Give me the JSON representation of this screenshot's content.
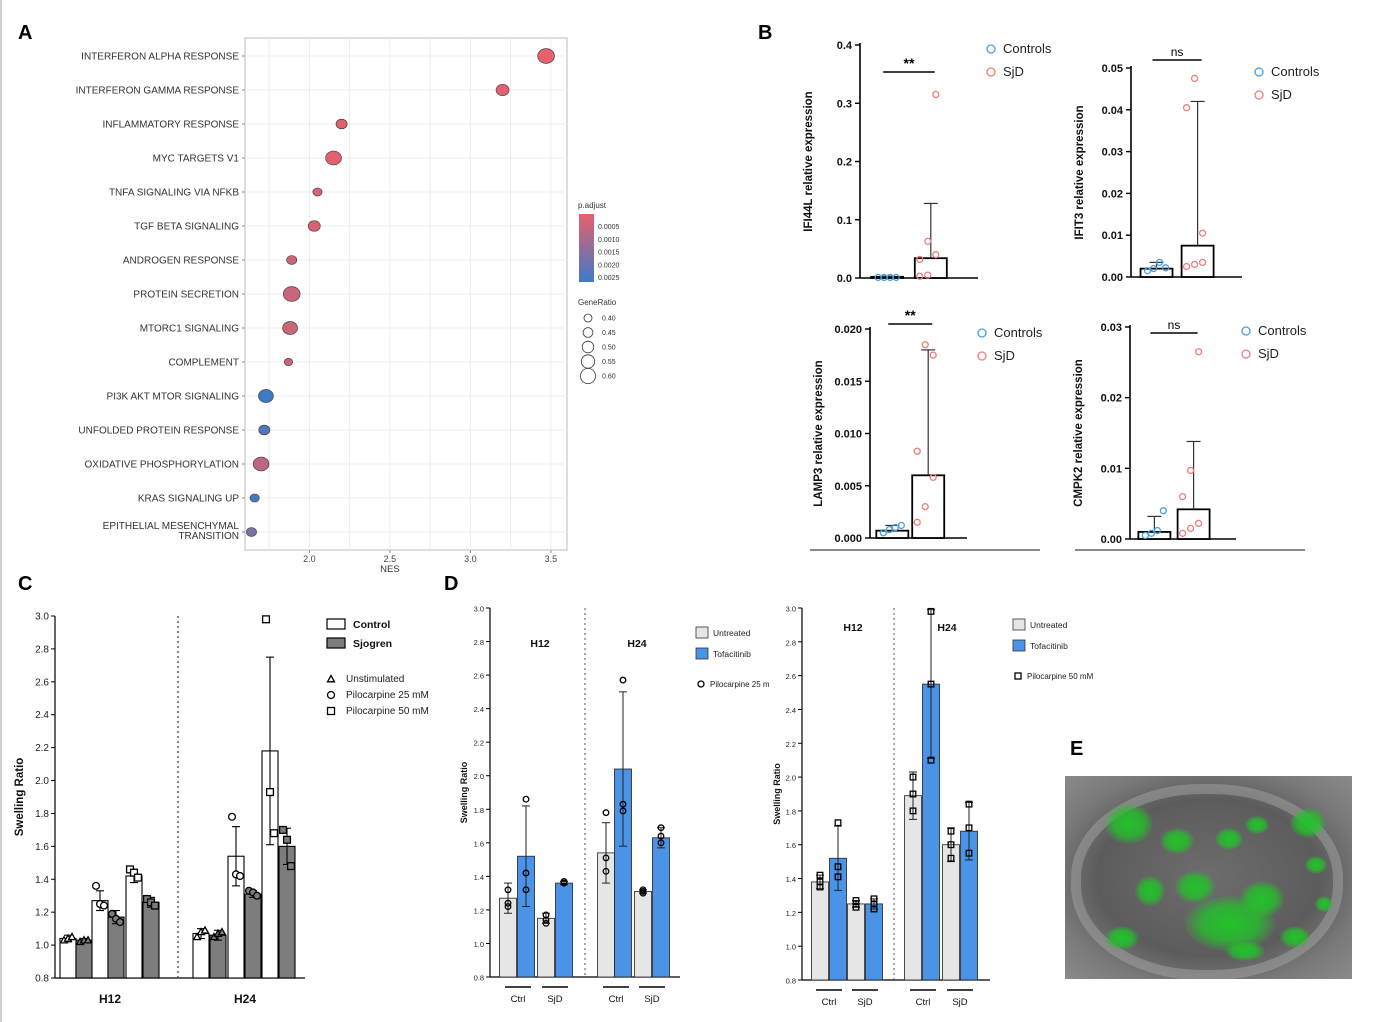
{
  "panels": {
    "A": "A",
    "B": "B",
    "C": "C",
    "D": "D",
    "E": "E"
  },
  "chart_data": [
    {
      "id": "A",
      "type": "scatter",
      "xlabel": "NES",
      "xticks": [
        2.0,
        2.5,
        3.0,
        3.5
      ],
      "xtick_labels": [
        "2.0",
        "2.5",
        "3.0",
        "3.5"
      ],
      "xlim": [
        1.6,
        3.6
      ],
      "grid": true,
      "categories": [
        "INTERFERON ALPHA RESPONSE",
        "INTERFERON GAMMA RESPONSE",
        "INFLAMMATORY RESPONSE",
        "MYC TARGETS V1",
        "TNFA SIGNALING VIA NFKB",
        "TGF BETA SIGNALING",
        "ANDROGEN RESPONSE",
        "PROTEIN SECRETION",
        "MTORC1 SIGNALING",
        "COMPLEMENT",
        "PI3K AKT MTOR SIGNALING",
        "UNFOLDED PROTEIN RESPONSE",
        "OXIDATIVE PHOSPHORYLATION",
        "KRAS SIGNALING UP",
        "EPITHELIAL MESENCHYMAL TRANSITION"
      ],
      "nes": [
        3.47,
        3.2,
        2.2,
        2.15,
        2.05,
        2.03,
        1.89,
        1.89,
        1.88,
        1.87,
        1.73,
        1.72,
        1.7,
        1.66,
        1.64
      ],
      "gene_ratio": [
        0.6,
        0.52,
        0.48,
        0.58,
        0.44,
        0.5,
        0.46,
        0.6,
        0.56,
        0.42,
        0.56,
        0.48,
        0.58,
        0.44,
        0.46
      ],
      "p_adjust": [
        0.0002,
        0.0003,
        0.0003,
        0.0003,
        0.0004,
        0.0004,
        0.0006,
        0.0006,
        0.0006,
        0.0006,
        0.0025,
        0.0022,
        0.0008,
        0.0024,
        0.0016
      ],
      "legend_color": {
        "title": "p.adjust",
        "labels": [
          "0.0005",
          "0.0010",
          "0.0015",
          "0.0020",
          "0.0025"
        ],
        "low_color": "#e8606a",
        "high_color": "#3d7ac8"
      },
      "legend_size": {
        "title": "GeneRatio",
        "labels": [
          "0.40",
          "0.45",
          "0.50",
          "0.55",
          "0.60"
        ]
      }
    },
    {
      "id": "B1",
      "type": "bar",
      "ylabel": "IFI44L relative expression",
      "ylim": [
        0,
        0.4
      ],
      "yticks": [
        "0.0",
        "0.1",
        "0.2",
        "0.3",
        "0.4"
      ],
      "groups": [
        "Controls",
        "SjD"
      ],
      "means": [
        0.002,
        0.034
      ],
      "sd_upper": [
        0.003,
        0.128
      ],
      "points": [
        [
          0.001,
          0.001,
          0.001,
          0.001
        ],
        [
          0.003,
          0.005,
          0.04,
          0.032,
          0.063,
          0.315
        ]
      ],
      "significance": "**",
      "legend": [
        "Controls",
        "SjD"
      ]
    },
    {
      "id": "B2",
      "type": "bar",
      "ylabel": "IFIT3 relative expression",
      "ylim": [
        0,
        0.05
      ],
      "yticks": [
        "0.00",
        "0.01",
        "0.02",
        "0.03",
        "0.04",
        "0.05"
      ],
      "groups": [
        "Controls",
        "SjD"
      ],
      "means": [
        0.002,
        0.0075
      ],
      "sd_upper": [
        0.0035,
        0.042
      ],
      "points": [
        [
          0.0015,
          0.002,
          0.0035,
          0.0022
        ],
        [
          0.0025,
          0.003,
          0.0105,
          0.0405,
          0.0475,
          0.0035
        ]
      ],
      "significance": "ns",
      "legend": [
        "Controls",
        "SjD"
      ]
    },
    {
      "id": "B3",
      "type": "bar",
      "ylabel": "LAMP3 relative expression",
      "ylim": [
        0,
        0.02
      ],
      "yticks": [
        "0.000",
        "0.005",
        "0.010",
        "0.015",
        "0.020"
      ],
      "groups": [
        "Controls",
        "SjD"
      ],
      "means": [
        0.0007,
        0.006
      ],
      "sd_upper": [
        0.0012,
        0.018
      ],
      "points": [
        [
          0.0005,
          0.0008,
          0.001,
          0.0012
        ],
        [
          0.0015,
          0.003,
          0.0058,
          0.0083,
          0.0185,
          0.0175
        ]
      ],
      "significance": "**",
      "legend": [
        "Controls",
        "SjD"
      ]
    },
    {
      "id": "B4",
      "type": "bar",
      "ylabel": "CMPK2 relative expression",
      "ylim": [
        0,
        0.03
      ],
      "yticks": [
        "0.00",
        "0.01",
        "0.02",
        "0.03"
      ],
      "groups": [
        "Controls",
        "SjD"
      ],
      "means": [
        0.001,
        0.0042
      ],
      "sd_upper": [
        0.0032,
        0.0138
      ],
      "points": [
        [
          0.0005,
          0.0008,
          0.0012,
          0.004
        ],
        [
          0.0008,
          0.0015,
          0.0022,
          0.006,
          0.0097,
          0.0265
        ]
      ],
      "significance": "ns",
      "legend": [
        "Controls",
        "SjD"
      ]
    },
    {
      "id": "C",
      "type": "bar",
      "ylabel": "Swelling Ratio",
      "ylim": [
        0.8,
        3.0
      ],
      "yticks": [
        "0.8",
        "1.0",
        "1.2",
        "1.4",
        "1.6",
        "1.8",
        "2.0",
        "2.2",
        "2.4",
        "2.6",
        "2.8",
        "3.0"
      ],
      "groups": [
        "H12",
        "H24"
      ],
      "legend_fill": [
        "Control",
        "Sjogren"
      ],
      "legend_marker": [
        "Unstimulated",
        "Pilocarpine 25 mM",
        "Pilocarpine 50 mM"
      ],
      "bars": [
        {
          "group": 0,
          "fill": "Control",
          "marker": "triangle",
          "mean": 1.04,
          "sd": 0.02,
          "points": [
            1.03,
            1.04,
            1.05
          ]
        },
        {
          "group": 0,
          "fill": "Sjogren",
          "marker": "triangle",
          "mean": 1.03,
          "sd": 0.01,
          "points": [
            1.02,
            1.03,
            1.03
          ]
        },
        {
          "group": 0,
          "fill": "Control",
          "marker": "circle",
          "mean": 1.27,
          "sd": 0.06,
          "points": [
            1.36,
            1.25,
            1.24
          ]
        },
        {
          "group": 0,
          "fill": "Sjogren",
          "marker": "circle",
          "mean": 1.17,
          "sd": 0.04,
          "points": [
            1.19,
            1.16,
            1.14
          ]
        },
        {
          "group": 0,
          "fill": "Control",
          "marker": "square",
          "mean": 1.42,
          "sd": 0.04,
          "points": [
            1.46,
            1.44,
            1.41
          ]
        },
        {
          "group": 0,
          "fill": "Sjogren",
          "marker": "square",
          "mean": 1.26,
          "sd": 0.03,
          "points": [
            1.28,
            1.26,
            1.24
          ]
        },
        {
          "group": 1,
          "fill": "Control",
          "marker": "triangle",
          "mean": 1.07,
          "sd": 0.03,
          "points": [
            1.05,
            1.08,
            1.09
          ]
        },
        {
          "group": 1,
          "fill": "Sjogren",
          "marker": "triangle",
          "mean": 1.06,
          "sd": 0.03,
          "points": [
            1.05,
            1.07,
            1.08
          ]
        },
        {
          "group": 1,
          "fill": "Control",
          "marker": "circle",
          "mean": 1.54,
          "sd": 0.18,
          "points": [
            1.78,
            1.43,
            1.42
          ]
        },
        {
          "group": 1,
          "fill": "Sjogren",
          "marker": "circle",
          "mean": 1.31,
          "sd": 0.02,
          "points": [
            1.33,
            1.32,
            1.3
          ]
        },
        {
          "group": 1,
          "fill": "Control",
          "marker": "square",
          "mean": 2.18,
          "sd": 0.57,
          "points": [
            2.98,
            1.93,
            1.68
          ]
        },
        {
          "group": 1,
          "fill": "Sjogren",
          "marker": "square",
          "mean": 1.6,
          "sd": 0.11,
          "points": [
            1.7,
            1.64,
            1.48
          ]
        }
      ]
    },
    {
      "id": "D1",
      "type": "bar",
      "ylabel": "Swelling Ratio",
      "ylim": [
        0.8,
        3.0
      ],
      "yticks": [
        "0.8",
        "1.0",
        "1.2",
        "1.4",
        "1.6",
        "1.8",
        "2.0",
        "2.2",
        "2.4",
        "2.6",
        "2.8",
        "3.0"
      ],
      "timepoints": [
        "H12",
        "H24"
      ],
      "xgroups": [
        "Ctrl",
        "SjD",
        "Ctrl",
        "SjD"
      ],
      "legend": [
        "Untreated",
        "Tofacitinib"
      ],
      "marker_legend": "Pilocarpine 25 m",
      "bars": [
        {
          "treat": "Untreated",
          "mean": 1.27,
          "sd": 0.09,
          "points": [
            1.32,
            1.24,
            1.22
          ]
        },
        {
          "treat": "Tofacitinib",
          "mean": 1.52,
          "sd": 0.3,
          "points": [
            1.86,
            1.42,
            1.32
          ]
        },
        {
          "treat": "Untreated",
          "mean": 1.15,
          "sd": 0.03,
          "points": [
            1.17,
            1.14,
            1.12
          ]
        },
        {
          "treat": "Tofacitinib",
          "mean": 1.36,
          "sd": 0.01,
          "points": [
            1.37,
            1.36,
            1.36
          ]
        },
        {
          "treat": "Untreated",
          "mean": 1.54,
          "sd": 0.18,
          "points": [
            1.78,
            1.51,
            1.43
          ]
        },
        {
          "treat": "Tofacitinib",
          "mean": 2.04,
          "sd": 0.46,
          "points": [
            2.57,
            1.83,
            1.79
          ]
        },
        {
          "treat": "Untreated",
          "mean": 1.31,
          "sd": 0.01,
          "points": [
            1.32,
            1.31,
            1.3
          ]
        },
        {
          "treat": "Tofacitinib",
          "mean": 1.63,
          "sd": 0.06,
          "points": [
            1.69,
            1.64,
            1.6
          ]
        }
      ]
    },
    {
      "id": "D2",
      "type": "bar",
      "ylabel": "Swelling Ratio",
      "ylim": [
        0.8,
        3.0
      ],
      "yticks": [
        "0.8",
        "1.0",
        "1.2",
        "1.4",
        "1.6",
        "1.8",
        "2.0",
        "2.2",
        "2.4",
        "2.6",
        "2.8",
        "3.0"
      ],
      "timepoints": [
        "H12",
        "H24"
      ],
      "xgroups": [
        "Ctrl",
        "SjD",
        "Ctrl",
        "SjD"
      ],
      "legend": [
        "Untreated",
        "Tofacitinib"
      ],
      "marker_legend": "Pilocarpine 50 mM",
      "bars": [
        {
          "treat": "Untreated",
          "mean": 1.38,
          "sd": 0.04,
          "points": [
            1.42,
            1.38,
            1.35
          ]
        },
        {
          "treat": "Tofacitinib",
          "mean": 1.52,
          "sd": 0.19,
          "points": [
            1.73,
            1.47,
            1.41
          ]
        },
        {
          "treat": "Untreated",
          "mean": 1.25,
          "sd": 0.02,
          "points": [
            1.27,
            1.25,
            1.23
          ]
        },
        {
          "treat": "Tofacitinib",
          "mean": 1.25,
          "sd": 0.03,
          "points": [
            1.28,
            1.25,
            1.22
          ]
        },
        {
          "treat": "Untreated",
          "mean": 1.89,
          "sd": 0.14,
          "points": [
            2.0,
            1.9,
            1.8
          ]
        },
        {
          "treat": "Tofacitinib",
          "mean": 2.55,
          "sd": 0.44,
          "points": [
            2.98,
            2.55,
            2.1
          ]
        },
        {
          "treat": "Untreated",
          "mean": 1.6,
          "sd": 0.1,
          "points": [
            1.68,
            1.6,
            1.52
          ]
        },
        {
          "treat": "Tofacitinib",
          "mean": 1.68,
          "sd": 0.17,
          "points": [
            1.84,
            1.7,
            1.55
          ]
        }
      ]
    }
  ],
  "colors": {
    "controls": "#4a9ee0",
    "sjd": "#ec7d7d",
    "control_bar": "#ffffff",
    "sjogren_bar": "#7d7d7d",
    "untreated": "#e6e6e6",
    "tofacitinib": "#4b93e6",
    "organoid_green": "#22c32a"
  }
}
